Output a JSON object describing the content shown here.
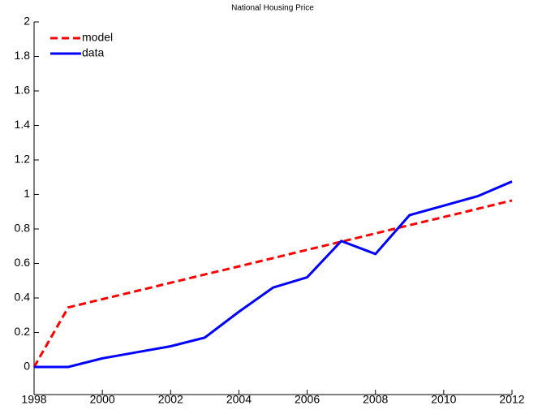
{
  "chart_data": {
    "type": "line",
    "title": "National Housing Price",
    "x": [
      1998,
      1999,
      2000,
      2001,
      2002,
      2003,
      2004,
      2005,
      2006,
      2007,
      2008,
      2009,
      2010,
      2011,
      2012
    ],
    "series": [
      {
        "name": "model",
        "color": "#ff0000",
        "dash": true,
        "values": [
          0,
          0.345,
          0.393,
          0.44,
          0.488,
          0.536,
          0.583,
          0.631,
          0.679,
          0.726,
          0.774,
          0.822,
          0.869,
          0.917,
          0.965
        ]
      },
      {
        "name": "data",
        "color": "#0000ff",
        "dash": false,
        "values": [
          0,
          0,
          0.05,
          0.085,
          0.12,
          0.17,
          0.32,
          0.46,
          0.52,
          0.73,
          0.655,
          0.88,
          0.935,
          0.99,
          1.075
        ]
      }
    ],
    "xlim": [
      1998,
      2012
    ],
    "xticks": [
      1998,
      2000,
      2002,
      2004,
      2006,
      2008,
      2010,
      2012
    ],
    "ylim": [
      -0.16,
      2
    ],
    "yticks": [
      0,
      0.2,
      0.4,
      0.6,
      0.8,
      1,
      1.2,
      1.4,
      1.6,
      1.8,
      2
    ],
    "legend": "upper-left"
  }
}
